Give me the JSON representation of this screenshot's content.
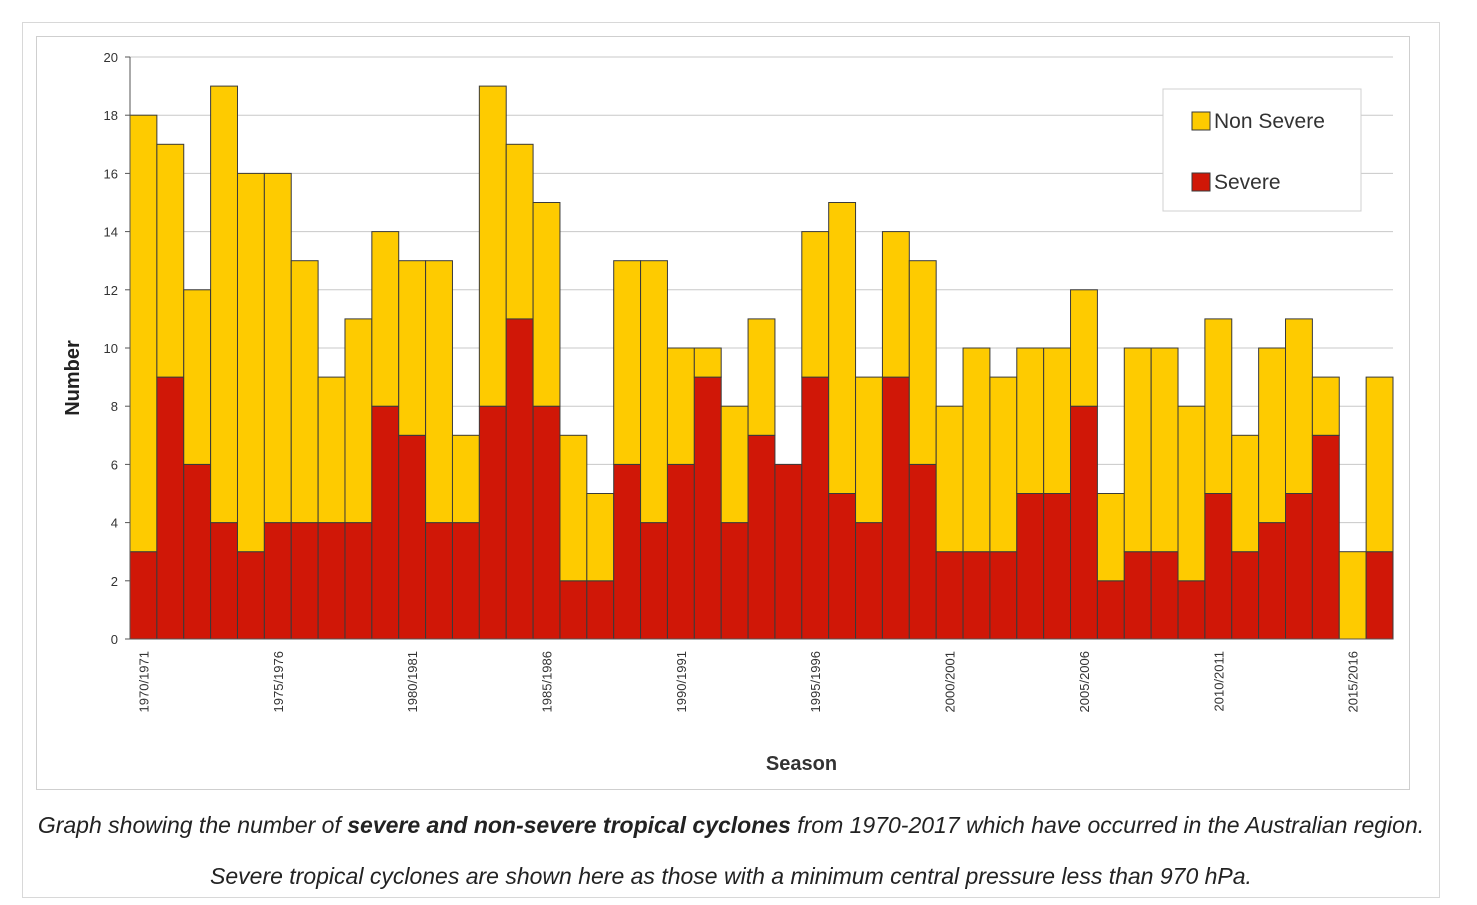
{
  "caption": {
    "before": "Graph showing the number of ",
    "bold": "severe and non-severe tropical cyclones",
    "after": " from 1970-2017 which have occurred in the Australian region. Severe tropical cyclones are shown here as those with a minimum central pressure less than 970 hPa."
  },
  "chart_data": {
    "type": "bar",
    "stacked": true,
    "title": "",
    "xlabel": "Season",
    "ylabel": "Number",
    "ylim": [
      0,
      20
    ],
    "yticks": [
      0,
      2,
      4,
      6,
      8,
      10,
      12,
      14,
      16,
      18,
      20
    ],
    "grid": true,
    "legend_position": "top-right",
    "categories": [
      "1970/1971",
      "1971/1972",
      "1972/1973",
      "1973/1974",
      "1974/1975",
      "1975/1976",
      "1976/1977",
      "1977/1978",
      "1978/1979",
      "1979/1980",
      "1980/1981",
      "1981/1982",
      "1982/1983",
      "1983/1984",
      "1984/1985",
      "1985/1986",
      "1986/1987",
      "1987/1988",
      "1988/1989",
      "1989/1990",
      "1990/1991",
      "1991/1992",
      "1992/1993",
      "1993/1994",
      "1994/1995",
      "1995/1996",
      "1996/1997",
      "1997/1998",
      "1998/1999",
      "1999/2000",
      "2000/2001",
      "2001/2002",
      "2002/2003",
      "2003/2004",
      "2004/2005",
      "2005/2006",
      "2006/2007",
      "2007/2008",
      "2008/2009",
      "2009/2010",
      "2010/2011",
      "2011/2012",
      "2012/2013",
      "2013/2014",
      "2014/2015",
      "2015/2016",
      "2016/2017"
    ],
    "visible_tick_labels": [
      "1970/1971",
      "1975/1976",
      "1980/1981",
      "1985/1986",
      "1990/1991",
      "1995/1996",
      "2000/2001",
      "2005/2006",
      "2010/2011",
      "2015/2016"
    ],
    "series": [
      {
        "name": "Severe",
        "color": "#d01707",
        "values": [
          3,
          9,
          6,
          4,
          3,
          4,
          4,
          4,
          4,
          8,
          7,
          4,
          4,
          8,
          11,
          8,
          2,
          2,
          6,
          4,
          6,
          9,
          4,
          7,
          6,
          9,
          5,
          4,
          9,
          6,
          3,
          3,
          3,
          5,
          5,
          8,
          2,
          3,
          3,
          2,
          5,
          3,
          4,
          5,
          7,
          0,
          3
        ]
      },
      {
        "name": "Non Severe",
        "color": "#fecb00",
        "values": [
          15,
          8,
          6,
          15,
          13,
          12,
          9,
          5,
          7,
          6,
          6,
          9,
          3,
          11,
          6,
          7,
          5,
          3,
          7,
          9,
          4,
          1,
          4,
          4,
          0,
          5,
          10,
          5,
          5,
          7,
          5,
          7,
          6,
          5,
          5,
          4,
          3,
          7,
          7,
          6,
          6,
          4,
          6,
          6,
          2,
          3,
          6
        ]
      }
    ],
    "legend": [
      {
        "name": "Non Severe",
        "color": "#fecb00"
      },
      {
        "name": "Severe",
        "color": "#d01707"
      }
    ]
  }
}
